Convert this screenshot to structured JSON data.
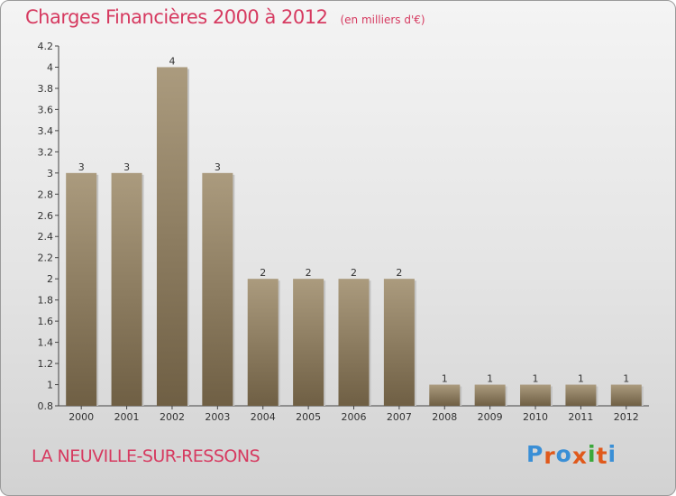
{
  "title": "Charges Financières 2000 à 2012",
  "subtitle": "(en milliers d'€)",
  "commune": "LA NEUVILLE-SUR-RESSONS",
  "logo": {
    "letters": [
      "P",
      "r",
      "o",
      "x",
      "i",
      "t",
      "i"
    ],
    "colors": [
      "#3a8fd6",
      "#e0591b",
      "#3a8fd6",
      "#e0591b",
      "#3aa83a",
      "#e0591b",
      "#3a8fd6"
    ]
  },
  "colors": {
    "bar_light": "#ab9b7e",
    "bar_dark": "#6f5f44",
    "accent": "#d63a60"
  },
  "chart_data": {
    "type": "bar",
    "title": "Charges Financières 2000 à 2012",
    "subtitle": "(en milliers d'€)",
    "categories": [
      "2000",
      "2001",
      "2002",
      "2003",
      "2004",
      "2005",
      "2006",
      "2007",
      "2008",
      "2009",
      "2010",
      "2011",
      "2012"
    ],
    "values": [
      3,
      3,
      4,
      3,
      2,
      2,
      2,
      2,
      1,
      1,
      1,
      1,
      1
    ],
    "data_labels": [
      "3",
      "3",
      "4",
      "3",
      "2",
      "2",
      "2",
      "2",
      "1",
      "1",
      "1",
      "1",
      "1"
    ],
    "ylim": [
      0.8,
      4.2
    ],
    "yticks": [
      0.8,
      1,
      1.2,
      1.4,
      1.6,
      1.8,
      2,
      2.2,
      2.4,
      2.6,
      2.8,
      3,
      3.2,
      3.4,
      3.6,
      3.8,
      4,
      4.2
    ],
    "ytick_labels": [
      "0.8",
      "1",
      "1.2",
      "1.4",
      "1.6",
      "1.8",
      "2",
      "2.2",
      "2.4",
      "2.6",
      "2.8",
      "3",
      "3.2",
      "3.4",
      "3.6",
      "3.8",
      "4",
      "4.2"
    ],
    "grid": false,
    "legend": "none"
  }
}
